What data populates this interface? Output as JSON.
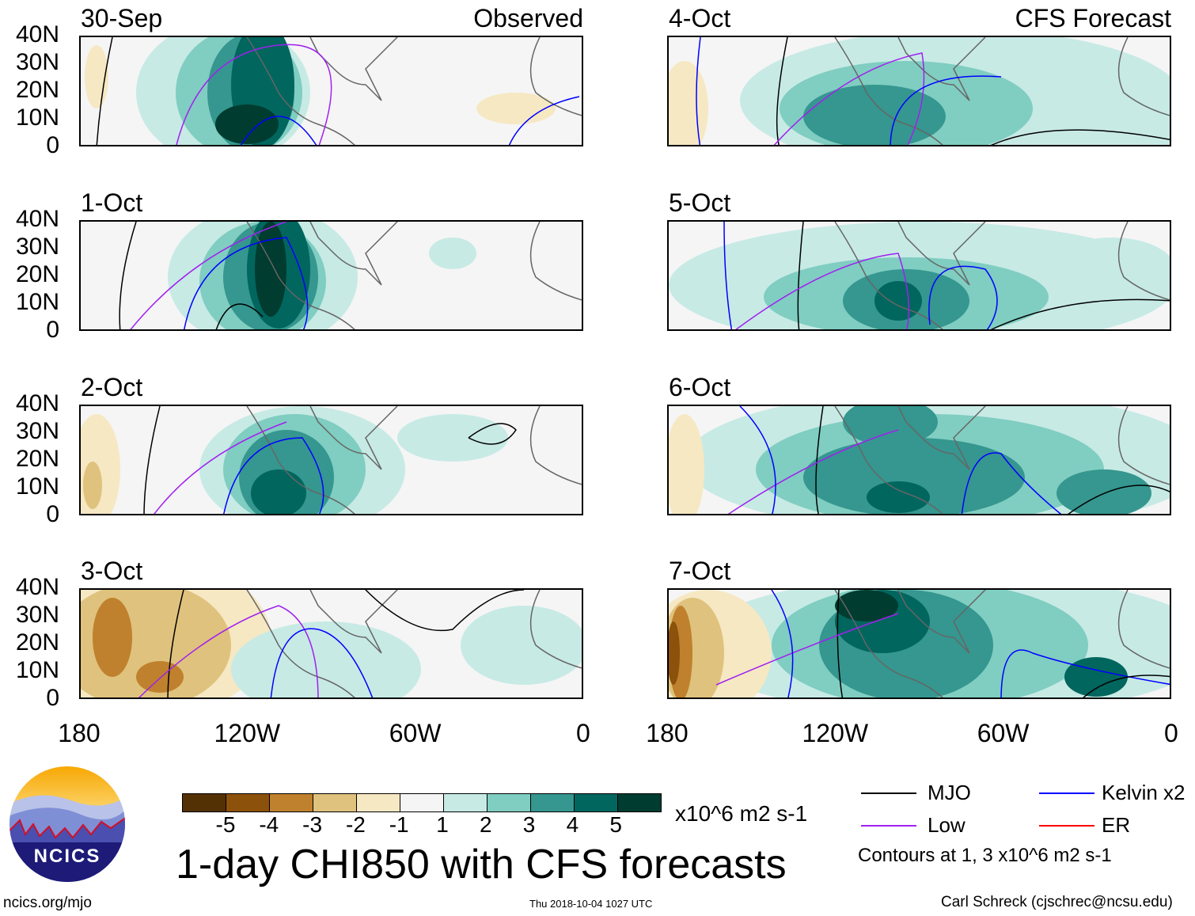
{
  "panels": [
    {
      "date": "30-Sep",
      "tag": "Observed"
    },
    {
      "date": "1-Oct"
    },
    {
      "date": "2-Oct"
    },
    {
      "date": "3-Oct"
    },
    {
      "date": "4-Oct",
      "tag": "CFS Forecast"
    },
    {
      "date": "5-Oct"
    },
    {
      "date": "6-Oct"
    },
    {
      "date": "7-Oct"
    }
  ],
  "lat_ticks": [
    "40N",
    "30N",
    "20N",
    "10N",
    "0"
  ],
  "lon_ticks": [
    "180",
    "120W",
    "60W",
    "0"
  ],
  "colorbar": {
    "colors": [
      "#543005",
      "#8c510a",
      "#bf812d",
      "#dfc27d",
      "#f6e8c3",
      "#f5f5f5",
      "#c7eae5",
      "#80cdc1",
      "#35978f",
      "#01665e",
      "#003c30"
    ],
    "labels": [
      "-5",
      "-4",
      "-3",
      "-2",
      "-1",
      "1",
      "2",
      "3",
      "4",
      "5"
    ],
    "units": "x10^6 m2 s-1"
  },
  "title": "1-day CHI850 with CFS forecasts",
  "timestamp": "Thu 2018-10-04 1027 UTC",
  "legend": [
    {
      "label": "MJO",
      "color": "#000000"
    },
    {
      "label": "Kelvin x2",
      "color": "#0000ff"
    },
    {
      "label": "Low",
      "color": "#a020f0"
    },
    {
      "label": "ER",
      "color": "#ff0000"
    }
  ],
  "contour_note": "Contours at 1, 3 x10^6 m2 s-1",
  "logo": "NCICS",
  "url": "ncics.org/mjo",
  "author": "Carl Schreck (cjschrec@ncsu.edu)"
}
